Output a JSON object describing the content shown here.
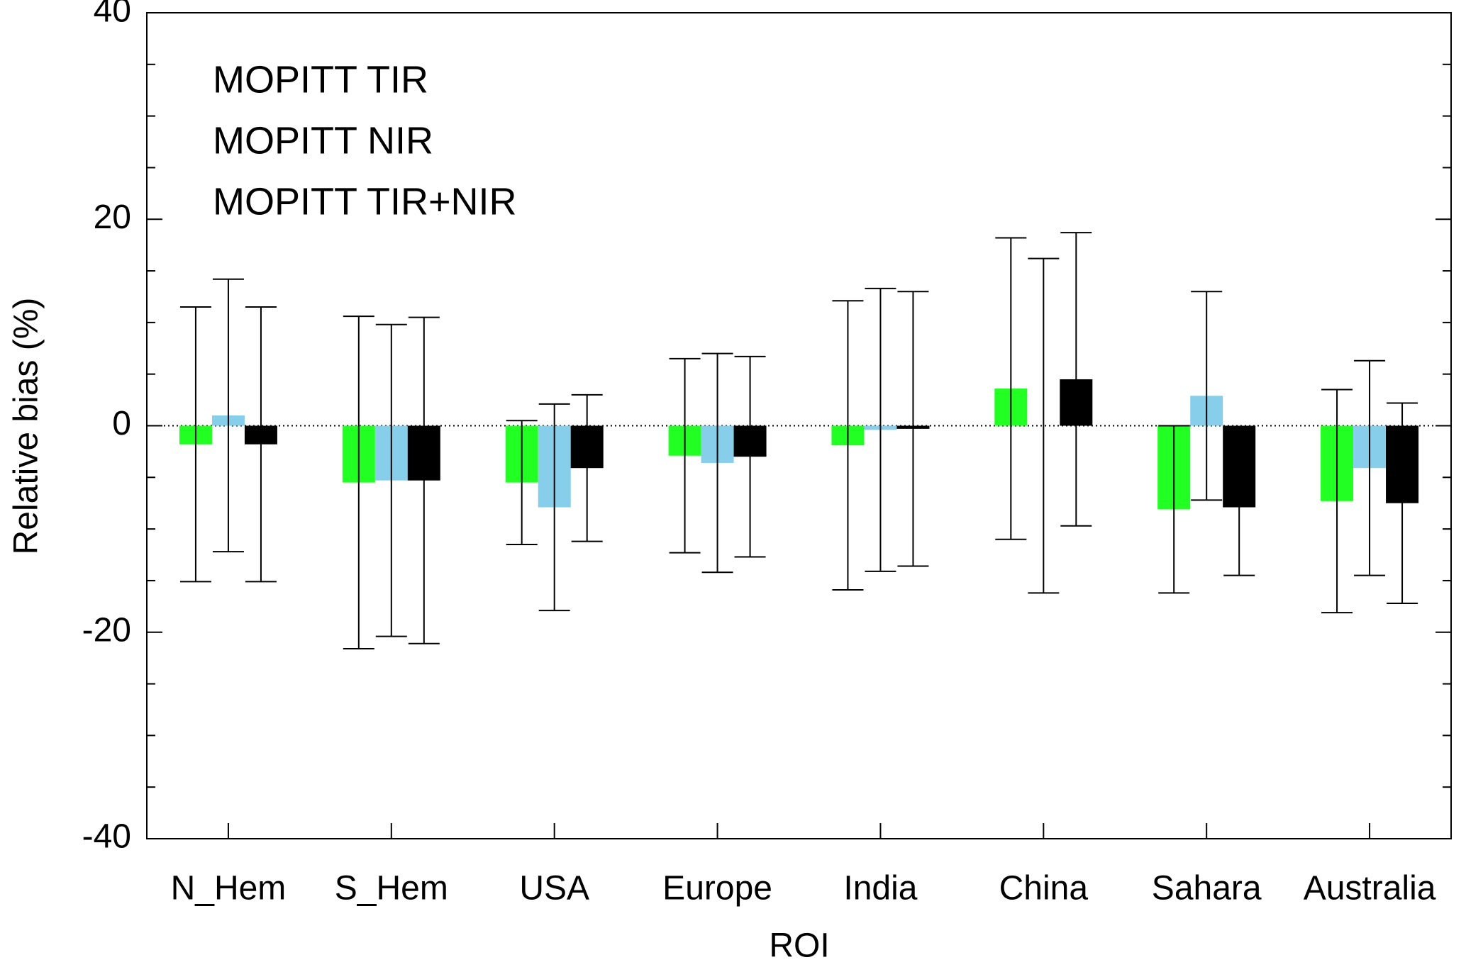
{
  "chart_data": {
    "type": "bar",
    "x_label": "ROI",
    "y_label": "Relative bias (%)",
    "categories": [
      "N_Hem",
      "S_Hem",
      "USA",
      "Europe",
      "India",
      "China",
      "Sahara",
      "Australia"
    ],
    "series": [
      {
        "name": "MOPITT TIR",
        "color": "#22ff22",
        "values": [
          -1.8,
          -5.5,
          -5.5,
          -2.9,
          -1.9,
          3.6,
          -8.1,
          -7.3
        ],
        "errors": [
          13.3,
          16.1,
          6.0,
          9.4,
          14.0,
          14.6,
          8.1,
          10.8
        ]
      },
      {
        "name": "MOPITT NIR",
        "color": "#87ceeb",
        "values": [
          1.0,
          -5.3,
          -7.9,
          -3.6,
          -0.4,
          0,
          2.9,
          -4.1
        ],
        "errors": [
          13.2,
          15.1,
          10.0,
          10.6,
          13.7,
          16.2,
          10.1,
          10.4
        ]
      },
      {
        "name": "MOPITT TIR+NIR",
        "color": "#000000",
        "values": [
          -1.8,
          -5.3,
          -4.1,
          -3.0,
          -0.3,
          4.5,
          -7.9,
          -7.5
        ],
        "errors": [
          13.3,
          15.8,
          7.1,
          9.7,
          13.3,
          14.2,
          6.6,
          9.7
        ]
      }
    ],
    "ylim": [
      -40,
      40
    ],
    "yticks": [
      -40,
      -20,
      0,
      20,
      40
    ],
    "yminorticks": [
      -35,
      -30,
      -25,
      -15,
      -10,
      -5,
      5,
      10,
      15,
      25,
      30,
      35
    ],
    "zero_line": true,
    "legend": "upper left"
  }
}
